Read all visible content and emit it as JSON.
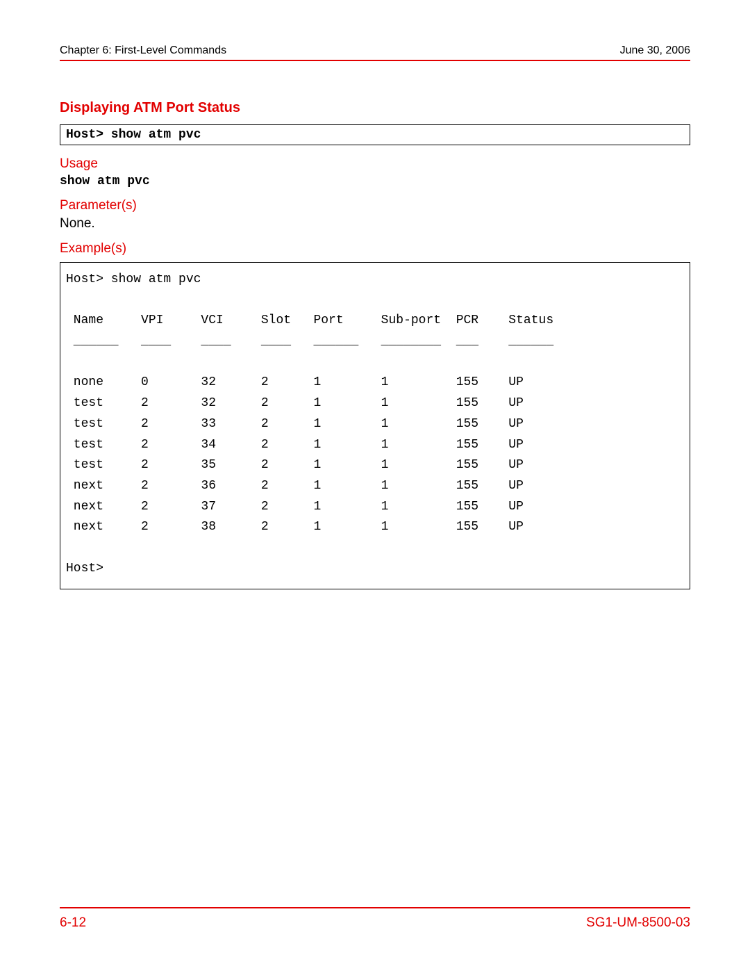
{
  "colors": {
    "accent": "#e20000",
    "text": "#000000",
    "background": "#ffffff",
    "border": "#000000"
  },
  "header": {
    "chapter": "Chapter 6: First-Level Commands",
    "date": "June 30, 2006"
  },
  "section": {
    "title": "Displaying ATM Port Status",
    "command_box": "Host> show atm pvc",
    "usage_label": "Usage",
    "usage_cmd": "show atm pvc",
    "parameters_label": "Parameter(s)",
    "parameters_value": "None.",
    "examples_label": "Example(s)"
  },
  "example": {
    "prompt_line": "Host> show atm pvc",
    "end_prompt": "Host>",
    "table": {
      "type": "table",
      "font_family": "Courier New",
      "font_size_pt": 12,
      "columns": [
        {
          "label": "Name",
          "width_ch": 9,
          "underline": "______"
        },
        {
          "label": "VPI",
          "width_ch": 8,
          "underline": "____"
        },
        {
          "label": "VCI",
          "width_ch": 8,
          "underline": "____"
        },
        {
          "label": "Slot",
          "width_ch": 7,
          "underline": "____"
        },
        {
          "label": "Port",
          "width_ch": 9,
          "underline": "______"
        },
        {
          "label": "Sub-port",
          "width_ch": 10,
          "underline": "________"
        },
        {
          "label": "PCR",
          "width_ch": 7,
          "underline": "___"
        },
        {
          "label": "Status",
          "width_ch": 8,
          "underline": "______"
        }
      ],
      "rows": [
        [
          "none",
          "0",
          "32",
          "2",
          "1",
          "1",
          "155",
          "UP"
        ],
        [
          "test",
          "2",
          "32",
          "2",
          "1",
          "1",
          "155",
          "UP"
        ],
        [
          "test",
          "2",
          "33",
          "2",
          "1",
          "1",
          "155",
          "UP"
        ],
        [
          "test",
          "2",
          "34",
          "2",
          "1",
          "1",
          "155",
          "UP"
        ],
        [
          "test",
          "2",
          "35",
          "2",
          "1",
          "1",
          "155",
          "UP"
        ],
        [
          "next",
          "2",
          "36",
          "2",
          "1",
          "1",
          "155",
          "UP"
        ],
        [
          "next",
          "2",
          "37",
          "2",
          "1",
          "1",
          "155",
          "UP"
        ],
        [
          "next",
          "2",
          "38",
          "2",
          "1",
          "1",
          "155",
          "UP"
        ]
      ]
    }
  },
  "footer": {
    "page_number": "6-12",
    "doc_id": "SG1-UM-8500-03"
  }
}
